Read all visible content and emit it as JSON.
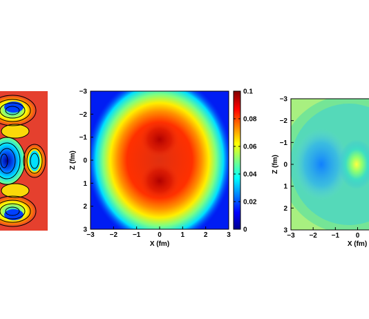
{
  "colors": {
    "jet_low": "#00008f",
    "jet_mid": "#00ffff",
    "jet_high": "#800000",
    "left_panel_background": "#e5402e"
  },
  "chart_data": [
    {
      "type": "heatmap",
      "description_id": "left-contour-panel",
      "xlabel": "",
      "ylabel": "",
      "style": "filled-contour",
      "cropped": true
    },
    {
      "type": "heatmap",
      "xlabel": "X (fm)",
      "ylabel": "Z (fm)",
      "xlim": [
        -3,
        3
      ],
      "ylim": [
        -3,
        3
      ],
      "y_reversed": true,
      "x_ticks": [
        -3,
        -2,
        -1,
        0,
        1,
        2,
        3
      ],
      "y_ticks": [
        -3,
        -2,
        -1,
        0,
        1,
        2,
        3
      ],
      "x_tick_labels": [
        "−3",
        "−2",
        "−1",
        "0",
        "1",
        "2",
        "3"
      ],
      "y_tick_labels": [
        "−3",
        "−2",
        "−1",
        "0",
        "1",
        "2",
        "3"
      ],
      "colorbar": {
        "range": [
          0,
          0.1
        ],
        "ticks": [
          0,
          0.02,
          0.04,
          0.06,
          0.08,
          0.1
        ],
        "tick_labels": [
          "0",
          "0.02",
          "0.04",
          "0.06",
          "0.08",
          "0.1"
        ]
      },
      "peaks": [
        {
          "x": 0,
          "z": -0.9,
          "value": 0.1
        },
        {
          "x": 0,
          "z": 0.9,
          "value": 0.1
        }
      ]
    },
    {
      "type": "heatmap",
      "xlabel": "X (fm)",
      "ylabel": "Z (fm)",
      "xlim": [
        -3,
        3
      ],
      "ylim": [
        -3,
        3
      ],
      "y_reversed": true,
      "cropped": true,
      "x_ticks": [
        -3,
        -2,
        -1,
        0
      ],
      "y_ticks": [
        -3,
        -2,
        -1,
        0,
        1,
        2,
        3
      ],
      "x_tick_labels": [
        "−3",
        "−2",
        "−1",
        "0"
      ],
      "y_tick_labels": [
        "−3",
        "−2",
        "−1",
        "0",
        "1",
        "2",
        "3"
      ],
      "style": "filled-contour"
    }
  ]
}
